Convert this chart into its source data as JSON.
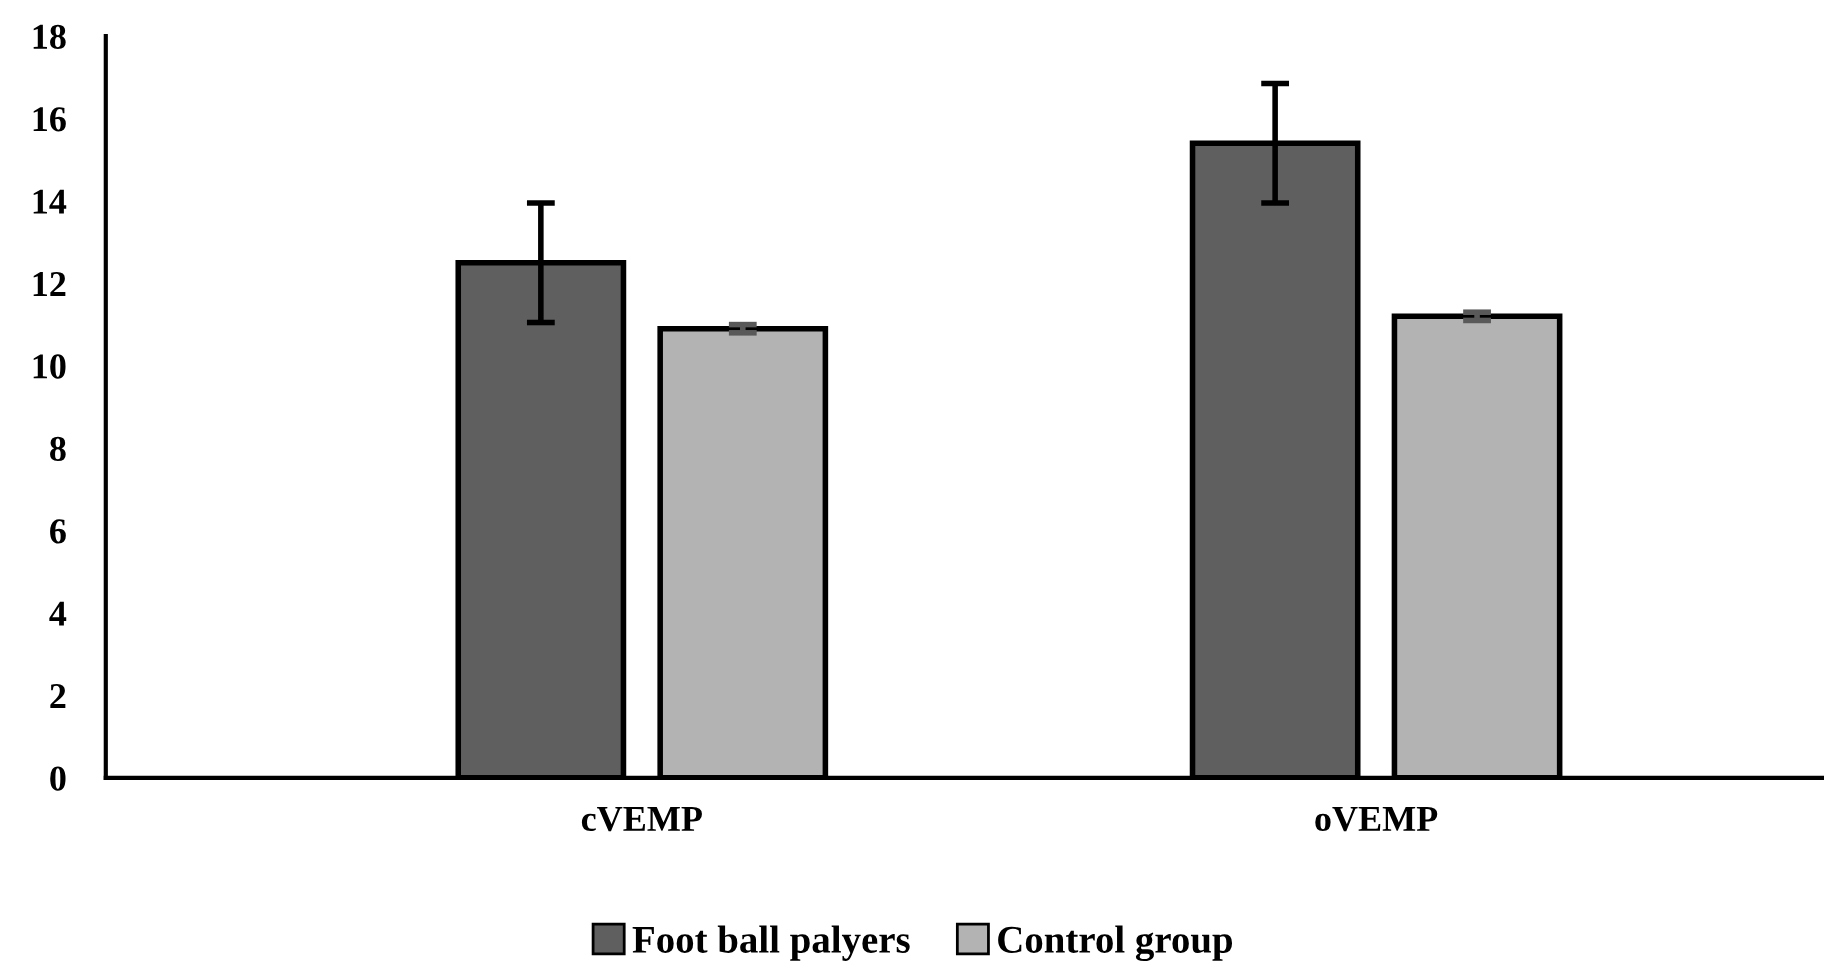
{
  "chart_data": {
    "type": "bar",
    "categories": [
      "cVEMP",
      "oVEMP"
    ],
    "series": [
      {
        "name": "Foot ball palyers",
        "color": "#5f5f5f",
        "values": [
          12.5,
          15.4
        ],
        "errors": [
          1.45,
          1.45
        ]
      },
      {
        "name": "Control group",
        "color": "#b3b3b3",
        "values": [
          10.9,
          11.2
        ],
        "errors": [
          0.1,
          0.1
        ]
      }
    ],
    "ylim": [
      0,
      18
    ],
    "yticks": [
      0,
      2,
      4,
      6,
      8,
      10,
      12,
      14,
      16,
      18
    ],
    "grid": false,
    "legend": "bottom"
  }
}
